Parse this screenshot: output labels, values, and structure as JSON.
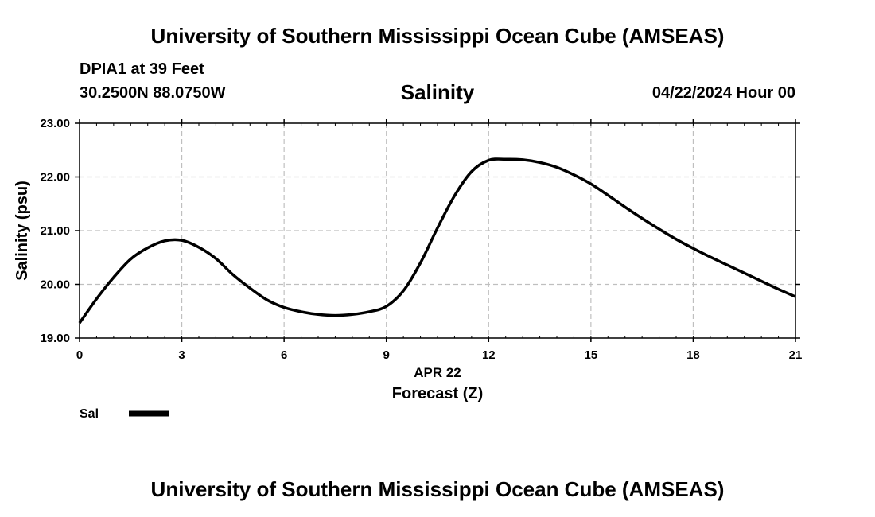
{
  "header": {
    "title": "University of Southern Mississippi Ocean Cube (AMSEAS)",
    "station": "DPIA1 at 39 Feet",
    "coords": "30.2500N  88.0750W",
    "subtitle": "Salinity",
    "datetime": "04/22/2024 Hour 00"
  },
  "footer": {
    "title": "University of Southern Mississippi Ocean Cube (AMSEAS)"
  },
  "chart_data": {
    "type": "line",
    "ylabel": "Salinity (psu)",
    "xlabel": "Forecast (Z)",
    "date_label": "APR 22",
    "xlim": [
      0,
      21
    ],
    "ylim": [
      19,
      23
    ],
    "x_ticks": [
      "0",
      "3",
      "6",
      "9",
      "12",
      "15",
      "18",
      "21"
    ],
    "y_ticks": [
      "19.00",
      "20.00",
      "21.00",
      "22.00",
      "23.00"
    ],
    "grid": true,
    "legend_position": "bottom-left",
    "line_color": "#000000",
    "series": [
      {
        "name": "Sal",
        "x": [
          0,
          0.5,
          1,
          1.5,
          2,
          2.5,
          3,
          3.5,
          4,
          4.5,
          5,
          5.5,
          6,
          6.5,
          7,
          7.5,
          8,
          8.5,
          9,
          9.5,
          10,
          10.5,
          11,
          11.5,
          12,
          12.5,
          13,
          13.5,
          14,
          14.5,
          15,
          15.5,
          16,
          16.5,
          17,
          17.5,
          18,
          18.5,
          19,
          19.5,
          20,
          20.5,
          21
        ],
        "values": [
          19.28,
          19.73,
          20.13,
          20.47,
          20.68,
          20.81,
          20.82,
          20.69,
          20.48,
          20.18,
          19.93,
          19.71,
          19.57,
          19.49,
          19.44,
          19.42,
          19.44,
          19.49,
          19.59,
          19.88,
          20.4,
          21.05,
          21.65,
          22.1,
          22.31,
          22.33,
          22.32,
          22.27,
          22.18,
          22.04,
          21.87,
          21.66,
          21.44,
          21.23,
          21.03,
          20.84,
          20.67,
          20.51,
          20.36,
          20.21,
          20.06,
          19.91,
          19.77
        ]
      }
    ]
  }
}
